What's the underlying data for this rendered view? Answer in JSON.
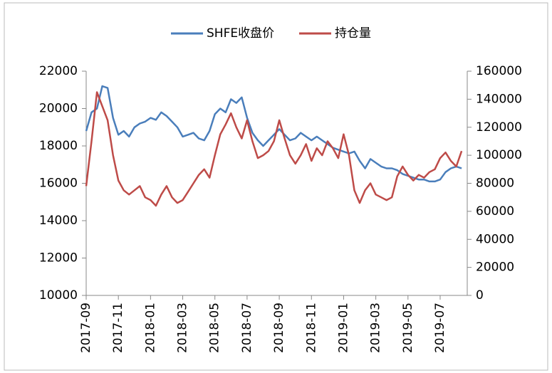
{
  "chart_data": {
    "type": "line",
    "categories": [
      "2017-09",
      null,
      null,
      null,
      null,
      null,
      "2017-11",
      null,
      null,
      null,
      null,
      null,
      "2018-01",
      null,
      null,
      null,
      null,
      null,
      "2018-03",
      null,
      null,
      null,
      null,
      null,
      "2018-05",
      null,
      null,
      null,
      null,
      null,
      "2018-07",
      null,
      null,
      null,
      null,
      null,
      "2018-09",
      null,
      null,
      null,
      null,
      null,
      "2018-11",
      null,
      null,
      null,
      null,
      null,
      "2019-01",
      null,
      null,
      null,
      null,
      null,
      "2019-03",
      null,
      null,
      null,
      null,
      null,
      "2019-05",
      null,
      null,
      null,
      null,
      null,
      "2019-07",
      null,
      null,
      null,
      null
    ],
    "series": [
      {
        "name": "SHFE收盘价",
        "color": "#4a7ebb",
        "values": [
          18800,
          19800,
          20000,
          21200,
          21100,
          19500,
          18600,
          18800,
          18500,
          19000,
          19200,
          19300,
          19500,
          19400,
          19800,
          19600,
          19300,
          19000,
          18500,
          18600,
          18700,
          18400,
          18300,
          18800,
          19700,
          20000,
          19800,
          20500,
          20300,
          20600,
          19500,
          18700,
          18300,
          18000,
          18300,
          18600,
          18900,
          18600,
          18300,
          18400,
          18700,
          18500,
          18300,
          18500,
          18300,
          18100,
          17900,
          17800,
          17700,
          17600,
          17700,
          17200,
          16800,
          17300,
          17100,
          16900,
          16800,
          16800,
          16700,
          16500,
          16400,
          16300,
          16200,
          16200,
          16100,
          16100,
          16200,
          16600,
          16800,
          16900,
          16800
        ]
      },
      {
        "name": "持仓量",
        "color": "#be4b48",
        "axis": "y2",
        "values": [
          78000,
          110000,
          145000,
          135000,
          125000,
          100000,
          82000,
          75000,
          72000,
          75000,
          78000,
          70000,
          68000,
          64000,
          72000,
          78000,
          70000,
          66000,
          68000,
          74000,
          80000,
          86000,
          90000,
          84000,
          100000,
          115000,
          122000,
          130000,
          120000,
          112000,
          125000,
          110000,
          98000,
          100000,
          103000,
          110000,
          125000,
          112000,
          100000,
          94000,
          100000,
          108000,
          96000,
          105000,
          100000,
          110000,
          105000,
          98000,
          115000,
          100000,
          75000,
          66000,
          75000,
          80000,
          72000,
          70000,
          68000,
          70000,
          85000,
          92000,
          86000,
          82000,
          86000,
          84000,
          88000,
          90000,
          98000,
          102000,
          96000,
          92000,
          103000
        ]
      }
    ],
    "ylim": [
      10000,
      22000
    ],
    "yticks": [
      10000,
      12000,
      14000,
      16000,
      18000,
      20000,
      22000
    ],
    "y2lim": [
      0,
      160000
    ],
    "y2ticks": [
      0,
      20000,
      40000,
      60000,
      80000,
      100000,
      120000,
      140000,
      160000
    ],
    "legend": "top",
    "grid": false
  }
}
